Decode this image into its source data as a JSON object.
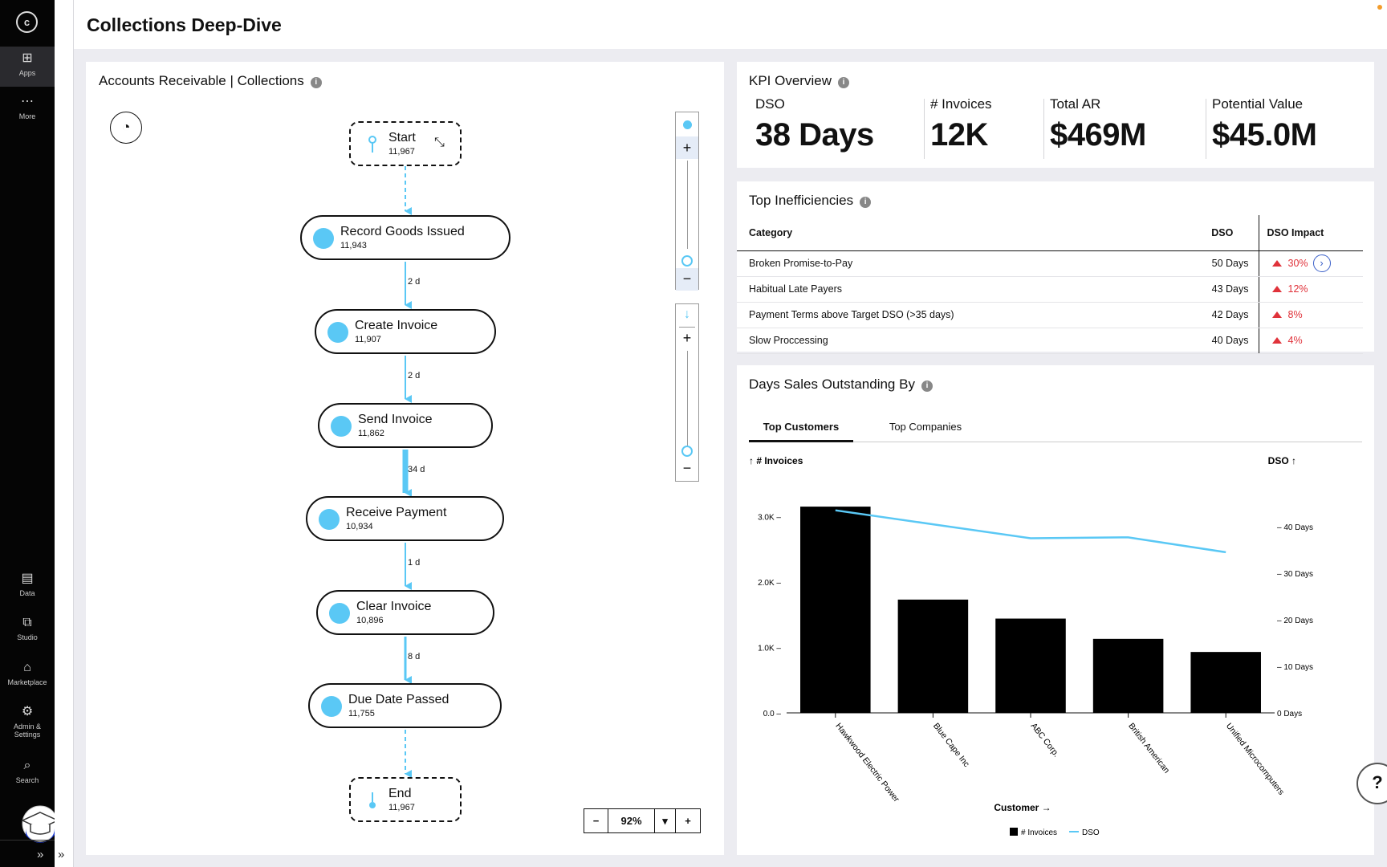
{
  "app": {
    "logo": "c",
    "title": "Collections Deep-Dive"
  },
  "sidebar": {
    "top": [
      {
        "label": "Apps",
        "icon": "apps-grid-icon"
      },
      {
        "label": "More",
        "icon": "more-dots-icon"
      }
    ],
    "bottom": [
      {
        "label": "Data",
        "icon": "data-icon"
      },
      {
        "label": "Studio",
        "icon": "studio-icon"
      },
      {
        "label": "Marketplace",
        "icon": "marketplace-icon"
      },
      {
        "label": "Admin &",
        "label2": "Settings",
        "icon": "sliders-icon"
      },
      {
        "label": "Search",
        "icon": "search-icon"
      }
    ],
    "collapse": "»"
  },
  "process": {
    "title": "Accounts Receivable | Collections",
    "start": {
      "label": "Start",
      "count": "11,967"
    },
    "end": {
      "label": "End",
      "count": "11,967"
    },
    "nodes": [
      {
        "label": "Record Goods Issued",
        "count": "11,943"
      },
      {
        "label": "Create Invoice",
        "count": "11,907"
      },
      {
        "label": "Send Invoice",
        "count": "11,862"
      },
      {
        "label": "Receive Payment",
        "count": "10,934"
      },
      {
        "label": "Clear Invoice",
        "count": "10,896"
      },
      {
        "label": "Due Date Passed",
        "count": "11,755"
      }
    ],
    "edges": [
      "2 d",
      "2 d",
      "34 d",
      "1 d",
      "8 d"
    ],
    "zoom": "92%",
    "zoom_minus": "−",
    "zoom_plus": "+",
    "zoom_dropdown": "▾",
    "slider_plus": "+",
    "slider_minus": "−"
  },
  "kpi": {
    "title": "KPI Overview",
    "items": [
      {
        "label": "DSO",
        "value": "38 Days"
      },
      {
        "label": "# Invoices",
        "value": "12K"
      },
      {
        "label": "Total AR",
        "value": "$469M"
      },
      {
        "label": "Potential Value",
        "value": "$45.0M"
      }
    ]
  },
  "inefficiencies": {
    "title": "Top Inefficiencies",
    "headers": {
      "category": "Category",
      "dso": "DSO",
      "impact": "DSO Impact"
    },
    "rows": [
      {
        "category": "Broken Promise-to-Pay",
        "dso": "50 Days",
        "impact": "30%"
      },
      {
        "category": "Habitual Late Payers",
        "dso": "43 Days",
        "impact": "12%"
      },
      {
        "category": "Payment Terms above Target DSO (>35 days)",
        "dso": "42 Days",
        "impact": "8%"
      },
      {
        "category": "Slow Proccessing",
        "dso": "40 Days",
        "impact": "4%"
      }
    ],
    "row_action": "›"
  },
  "dso_chart_panel": {
    "title": "Days Sales Outstanding By",
    "tabs": [
      "Top Customers",
      "Top Companies"
    ]
  },
  "chart_data": {
    "type": "bar",
    "title": "Days Sales Outstanding By",
    "categories": [
      "Hawkwood Electric Power",
      "Blue Cape Inc",
      "ABC Corp.",
      "British American",
      "Unified Microcomputers"
    ],
    "series": [
      {
        "name": "# Invoices",
        "type": "bar",
        "axis": "left",
        "values": [
          3150,
          1730,
          1440,
          1130,
          930
        ]
      },
      {
        "name": "DSO",
        "type": "line",
        "axis": "right",
        "values": [
          43.5,
          40.5,
          37.5,
          37.7,
          34.5
        ]
      }
    ],
    "xlabel": "Customer →",
    "ylabel_left": "↑ # Invoices",
    "ylabel_right": "DSO ↑",
    "ylim_left": [
      0,
      3000
    ],
    "ylim_right": [
      0,
      40
    ],
    "yticks_left": [
      "0.0",
      "1.0K",
      "2.0K",
      "3.0K"
    ],
    "yticks_right": [
      "0 Days",
      "10 Days",
      "20 Days",
      "30 Days",
      "40 Days"
    ],
    "legend": [
      "# Invoices",
      "DSO"
    ],
    "colors": {
      "bar": "#000000",
      "line": "#5ac8f5"
    }
  },
  "help": "?"
}
